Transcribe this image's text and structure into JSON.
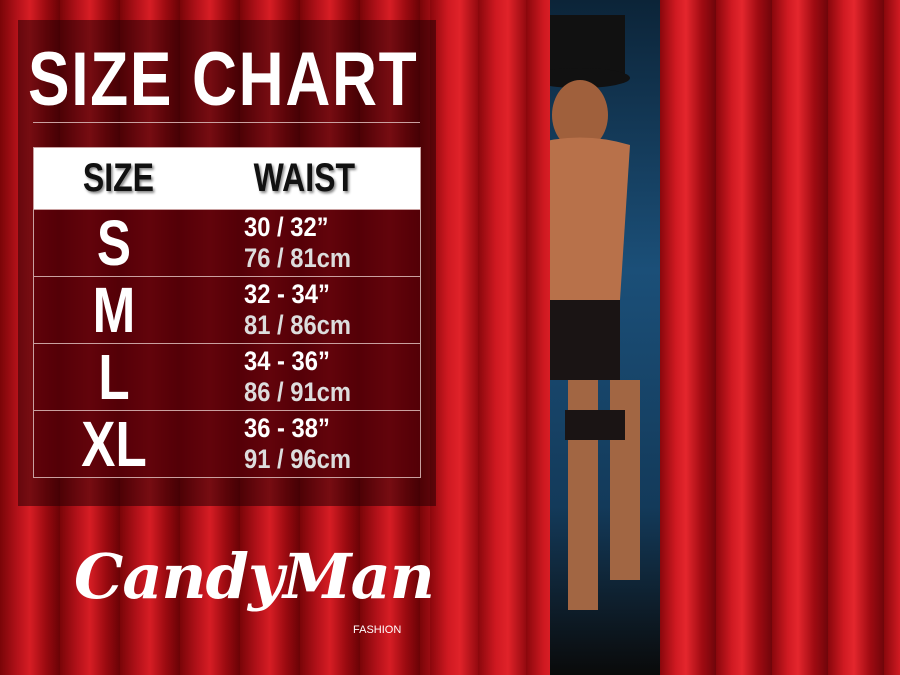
{
  "title": "SIZE CHART",
  "table": {
    "headers": [
      "SIZE",
      "WAIST"
    ],
    "rows": [
      {
        "size": "S",
        "inches": "30 / 32”",
        "cm": "76 / 81cm"
      },
      {
        "size": "M",
        "inches": "32 - 34”",
        "cm": "81 / 86cm"
      },
      {
        "size": "L",
        "inches": "34 - 36”",
        "cm": "86 / 91cm"
      },
      {
        "size": "XL",
        "inches": "36 - 38”",
        "cm": "91 / 96cm"
      }
    ]
  },
  "brand": {
    "name": "CandyMan",
    "sub": "FASHION"
  },
  "colors": {
    "curtain": "#c8161e",
    "panel": "#3a0004",
    "header_bg": "#ffffff"
  }
}
